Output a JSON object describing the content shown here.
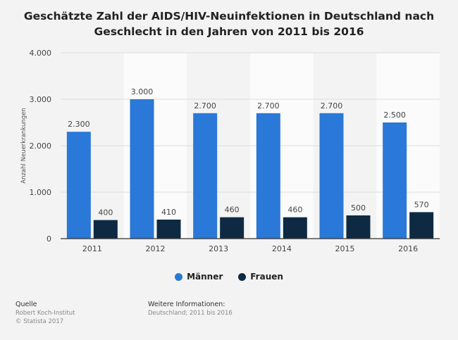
{
  "title": "Geschätzte Zahl der AIDS/HIV-Neuinfektionen in Deutschland nach Geschlecht in den Jahren von 2011 bis 2016",
  "chart_data": {
    "type": "bar",
    "categories": [
      "2011",
      "2012",
      "2013",
      "2014",
      "2015",
      "2016"
    ],
    "series": [
      {
        "name": "Männer",
        "values": [
          2300,
          3000,
          2700,
          2700,
          2700,
          2500
        ],
        "color": "#2a78d8"
      },
      {
        "name": "Frauen",
        "values": [
          400,
          410,
          460,
          460,
          500,
          570
        ],
        "color": "#0e2a43"
      }
    ],
    "value_labels": [
      [
        "2.300",
        "3.000",
        "2.700",
        "2.700",
        "2.700",
        "2.500"
      ],
      [
        "400",
        "410",
        "460",
        "460",
        "500",
        "570"
      ]
    ],
    "ylabel": "Anzahl Neuerkrankungen",
    "ylim": [
      0,
      4000
    ],
    "yticks": [
      0,
      1000,
      2000,
      3000,
      4000
    ],
    "ytick_labels": [
      "0",
      "1.000",
      "2.000",
      "3.000",
      "4.000"
    ],
    "grid": true,
    "legend_position": "bottom"
  },
  "footer": {
    "source_heading": "Quelle",
    "source_lines": [
      "Robert Koch-Institut",
      "© Statista 2017"
    ],
    "info_heading": "Weitere Informationen:",
    "info_line": "Deutschland; 2011 bis 2016"
  }
}
